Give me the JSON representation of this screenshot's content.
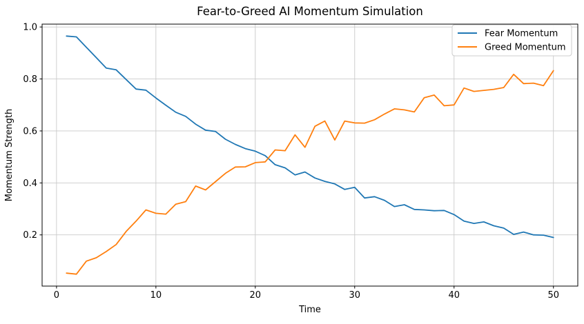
{
  "chart": {
    "title": "Fear-to-Greed AI Momentum Simulation",
    "xlabel": "Time",
    "ylabel": "Momentum Strength"
  },
  "legend": {
    "position": "upper right",
    "entries": [
      {
        "label": "Fear Momentum",
        "color": "#1f77b4"
      },
      {
        "label": "Greed Momentum",
        "color": "#ff7f0e"
      }
    ]
  },
  "chart_data": {
    "type": "line",
    "title": "Fear-to-Greed AI Momentum Simulation",
    "xlabel": "Time",
    "ylabel": "Momentum Strength",
    "grid": true,
    "legend_position": "upper right",
    "xlim": [
      -1.45,
      52.45
    ],
    "ylim": [
      0.003,
      1.011
    ],
    "xticks": [
      {
        "v": 0,
        "label": "0"
      },
      {
        "v": 10,
        "label": "10"
      },
      {
        "v": 20,
        "label": "20"
      },
      {
        "v": 30,
        "label": "30"
      },
      {
        "v": 40,
        "label": "40"
      },
      {
        "v": 50,
        "label": "50"
      }
    ],
    "yticks": [
      {
        "v": 0.2,
        "label": "0.2"
      },
      {
        "v": 0.4,
        "label": "0.4"
      },
      {
        "v": 0.6,
        "label": "0.6"
      },
      {
        "v": 0.8,
        "label": "0.8"
      },
      {
        "v": 1.0,
        "label": "1.0"
      }
    ],
    "x": [
      1,
      2,
      3,
      4,
      5,
      6,
      7,
      8,
      9,
      10,
      11,
      12,
      13,
      14,
      15,
      16,
      17,
      18,
      19,
      20,
      21,
      22,
      23,
      24,
      25,
      26,
      27,
      28,
      29,
      30,
      31,
      32,
      33,
      34,
      35,
      36,
      37,
      38,
      39,
      40,
      41,
      42,
      43,
      44,
      45,
      46,
      47,
      48,
      49,
      50
    ],
    "series": [
      {
        "name": "Fear Momentum",
        "color": "#1f77b4",
        "values": [
          0.965,
          0.962,
          0.922,
          0.882,
          0.842,
          0.835,
          0.798,
          0.761,
          0.757,
          0.727,
          0.699,
          0.672,
          0.656,
          0.626,
          0.603,
          0.598,
          0.568,
          0.548,
          0.532,
          0.522,
          0.505,
          0.47,
          0.458,
          0.431,
          0.442,
          0.419,
          0.406,
          0.396,
          0.375,
          0.383,
          0.342,
          0.347,
          0.333,
          0.309,
          0.316,
          0.298,
          0.296,
          0.293,
          0.294,
          0.278,
          0.253,
          0.244,
          0.25,
          0.235,
          0.226,
          0.202,
          0.211,
          0.2,
          0.199,
          0.19
        ]
      },
      {
        "name": "Greed Momentum",
        "color": "#ff7f0e",
        "values": [
          0.053,
          0.049,
          0.099,
          0.112,
          0.136,
          0.163,
          0.213,
          0.253,
          0.296,
          0.283,
          0.28,
          0.318,
          0.328,
          0.388,
          0.373,
          0.405,
          0.437,
          0.461,
          0.462,
          0.478,
          0.481,
          0.527,
          0.524,
          0.585,
          0.537,
          0.618,
          0.638,
          0.565,
          0.638,
          0.631,
          0.63,
          0.643,
          0.665,
          0.685,
          0.681,
          0.673,
          0.728,
          0.738,
          0.697,
          0.7,
          0.765,
          0.752,
          0.756,
          0.76,
          0.767,
          0.818,
          0.782,
          0.784,
          0.774,
          0.832
        ]
      }
    ],
    "colors": {
      "grid": "#c9c9c9",
      "spine": "#000000",
      "legend_border": "#cccccc",
      "background": "#ffffff"
    }
  }
}
